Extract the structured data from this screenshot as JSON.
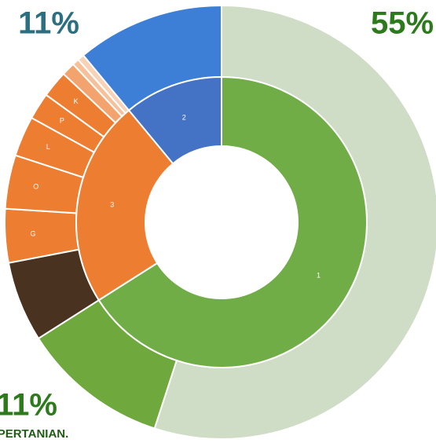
{
  "chart_data": {
    "type": "sunburst",
    "inner": {
      "categories": [
        "1",
        "3",
        "2"
      ],
      "values": [
        66,
        23,
        11
      ],
      "colors": [
        "#70ad47",
        "#ed7d31",
        "#4472c4"
      ]
    },
    "outer": {
      "categories": [
        null,
        null,
        null,
        "G",
        "O",
        "L",
        "P",
        "K",
        null,
        null,
        null,
        null
      ],
      "values": [
        55,
        11,
        6,
        4,
        4,
        3,
        2,
        2,
        1,
        0.5,
        0.5,
        11
      ],
      "value_labels": [
        "55%",
        "11%",
        null,
        null,
        null,
        null,
        null,
        null,
        null,
        null,
        null,
        "11%"
      ],
      "colors": [
        "#cfdcc6",
        "#6fa83c",
        "#4a3220",
        "#ed7d31",
        "#ed7d31",
        "#ed7d31",
        "#ed7d31",
        "#ed7d31",
        "#f3a46e",
        "#f6c09b",
        "#f8d2b6",
        "#3d7fd6"
      ]
    },
    "annotation": "PERTANIAN."
  }
}
